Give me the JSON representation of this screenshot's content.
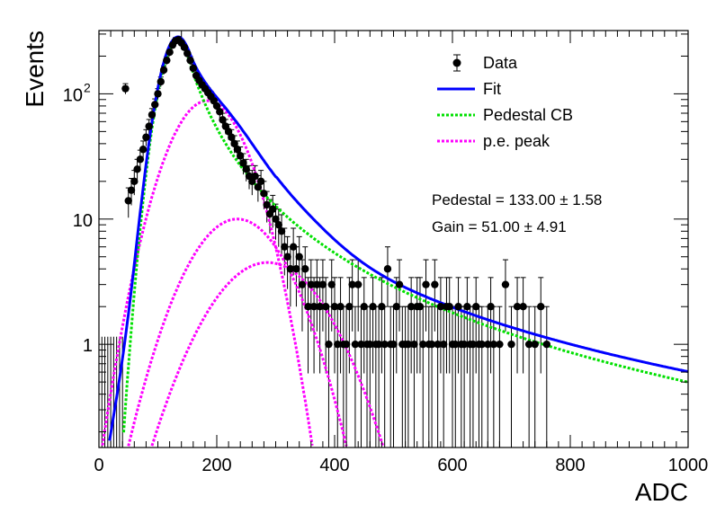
{
  "chart_data": {
    "type": "scatter",
    "xlabel": "ADC",
    "ylabel": "Events",
    "xlim": [
      0,
      1000
    ],
    "ylim": [
      0.15,
      320
    ],
    "yscale": "log",
    "grid": false,
    "legend_position": "top-right",
    "x_ticks": [
      {
        "value": 0,
        "label": "0"
      },
      {
        "value": 200,
        "label": "200"
      },
      {
        "value": 400,
        "label": "400"
      },
      {
        "value": 600,
        "label": "600"
      },
      {
        "value": 800,
        "label": "800"
      },
      {
        "value": 1000,
        "label": "1000"
      }
    ],
    "y_ticks": [
      {
        "value": 1,
        "label": "1"
      },
      {
        "value": 10,
        "label": "10"
      },
      {
        "value": 100,
        "label": "10",
        "exponent": "2"
      }
    ],
    "legend": [
      {
        "label": "Data",
        "style": "marker",
        "color": "#000000"
      },
      {
        "label": "Fit",
        "style": "solid",
        "color": "#0000ff"
      },
      {
        "label": "Pedestal CB",
        "style": "dotted",
        "color": "#00e000"
      },
      {
        "label": "p.e. peak",
        "style": "dotted",
        "color": "#ff00ff"
      }
    ],
    "annotations": [
      {
        "text": "Pedestal = 133.00 ± 1.58"
      },
      {
        "text": "Gain = 51.00 ± 4.91"
      }
    ],
    "fit_params": {
      "pedestal": 133.0,
      "pedestal_err": 1.58,
      "gain": 51.0,
      "gain_err": 4.91
    },
    "series": [
      {
        "name": "Data",
        "points": [
          [
            45,
            110
          ],
          [
            50,
            14
          ],
          [
            55,
            17
          ],
          [
            60,
            20
          ],
          [
            65,
            25
          ],
          [
            70,
            30
          ],
          [
            75,
            36
          ],
          [
            80,
            45
          ],
          [
            85,
            55
          ],
          [
            90,
            68
          ],
          [
            95,
            82
          ],
          [
            100,
            100
          ],
          [
            105,
            125
          ],
          [
            110,
            155
          ],
          [
            115,
            185
          ],
          [
            120,
            215
          ],
          [
            125,
            245
          ],
          [
            130,
            265
          ],
          [
            135,
            270
          ],
          [
            140,
            255
          ],
          [
            145,
            235
          ],
          [
            150,
            210
          ],
          [
            155,
            185
          ],
          [
            160,
            160
          ],
          [
            165,
            140
          ],
          [
            170,
            128
          ],
          [
            175,
            118
          ],
          [
            180,
            110
          ],
          [
            185,
            102
          ],
          [
            190,
            95
          ],
          [
            195,
            88
          ],
          [
            200,
            80
          ],
          [
            205,
            72
          ],
          [
            210,
            62
          ],
          [
            215,
            55
          ],
          [
            220,
            50
          ],
          [
            225,
            45
          ],
          [
            230,
            40
          ],
          [
            235,
            36
          ],
          [
            240,
            32
          ],
          [
            245,
            28
          ],
          [
            250,
            25
          ],
          [
            255,
            22
          ],
          [
            260,
            20
          ],
          [
            265,
            22
          ],
          [
            270,
            18
          ],
          [
            275,
            20
          ],
          [
            280,
            16
          ],
          [
            285,
            13
          ],
          [
            290,
            11
          ],
          [
            295,
            12
          ],
          [
            300,
            10
          ],
          [
            305,
            9
          ],
          [
            310,
            8
          ],
          [
            315,
            6
          ],
          [
            320,
            5
          ],
          [
            325,
            4
          ],
          [
            330,
            6
          ],
          [
            335,
            4
          ],
          [
            340,
            5
          ],
          [
            345,
            3
          ],
          [
            350,
            4
          ],
          [
            355,
            2
          ],
          [
            360,
            3
          ],
          [
            365,
            2
          ],
          [
            370,
            3
          ],
          [
            375,
            2
          ],
          [
            380,
            3
          ],
          [
            385,
            2
          ],
          [
            390,
            1
          ],
          [
            395,
            3
          ],
          [
            400,
            2
          ],
          [
            405,
            1
          ],
          [
            410,
            2
          ],
          [
            415,
            1
          ],
          [
            420,
            1
          ],
          [
            425,
            2
          ],
          [
            430,
            3
          ],
          [
            435,
            1
          ],
          [
            440,
            3
          ],
          [
            445,
            1
          ],
          [
            450,
            2
          ],
          [
            455,
            1
          ],
          [
            460,
            1
          ],
          [
            465,
            2
          ],
          [
            470,
            1
          ],
          [
            475,
            1
          ],
          [
            480,
            2
          ],
          [
            485,
            1
          ],
          [
            490,
            4
          ],
          [
            495,
            1
          ],
          [
            500,
            1
          ],
          [
            505,
            2
          ],
          [
            510,
            3
          ],
          [
            515,
            1
          ],
          [
            520,
            1
          ],
          [
            525,
            1
          ],
          [
            530,
            2
          ],
          [
            535,
            1
          ],
          [
            540,
            2
          ],
          [
            545,
            2
          ],
          [
            550,
            1
          ],
          [
            555,
            3
          ],
          [
            560,
            1
          ],
          [
            565,
            1
          ],
          [
            570,
            3
          ],
          [
            575,
            1
          ],
          [
            580,
            2
          ],
          [
            585,
            1
          ],
          [
            590,
            2
          ],
          [
            595,
            2
          ],
          [
            600,
            1
          ],
          [
            605,
            1
          ],
          [
            610,
            2
          ],
          [
            615,
            1
          ],
          [
            620,
            1
          ],
          [
            625,
            2
          ],
          [
            630,
            1
          ],
          [
            635,
            1
          ],
          [
            640,
            2
          ],
          [
            645,
            1
          ],
          [
            650,
            1
          ],
          [
            660,
            1
          ],
          [
            665,
            2
          ],
          [
            670,
            1
          ],
          [
            680,
            1
          ],
          [
            690,
            3
          ],
          [
            700,
            1
          ],
          [
            710,
            2
          ],
          [
            720,
            2
          ],
          [
            730,
            1
          ],
          [
            740,
            1
          ],
          [
            750,
            2
          ],
          [
            760,
            1
          ]
        ]
      }
    ],
    "curves": [
      {
        "name": "Fit",
        "color": "#0000ff"
      },
      {
        "name": "Pedestal CB",
        "color": "#00e000"
      },
      {
        "name": "p.e. peak",
        "color": "#ff00ff"
      }
    ]
  }
}
